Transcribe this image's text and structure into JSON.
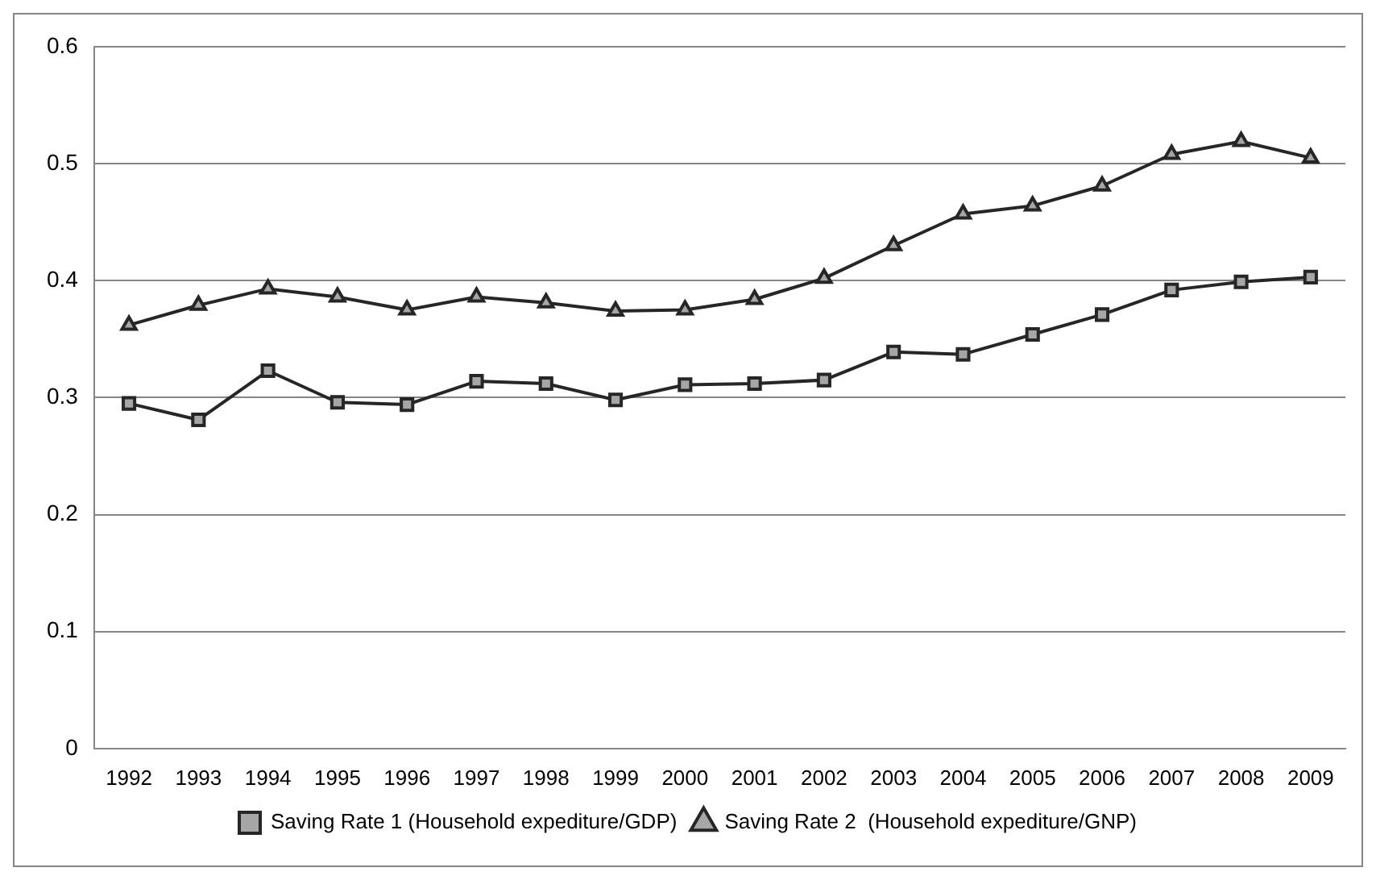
{
  "chart_data": {
    "type": "line",
    "categories": [
      "1992",
      "1993",
      "1994",
      "1995",
      "1996",
      "1997",
      "1998",
      "1999",
      "2000",
      "2001",
      "2002",
      "2003",
      "2004",
      "2005",
      "2006",
      "2007",
      "2008",
      "2009"
    ],
    "series": [
      {
        "name": "Saving Rate 1 (Household expediture/GDP)",
        "color": "#262626",
        "marker": "square",
        "values": [
          0.295,
          0.281,
          0.323,
          0.296,
          0.294,
          0.314,
          0.312,
          0.298,
          0.311,
          0.312,
          0.315,
          0.339,
          0.337,
          0.354,
          0.371,
          0.392,
          0.399,
          0.403
        ]
      },
      {
        "name": "Saving Rate 2  (Household expediture/GNP)",
        "color": "#262626",
        "marker": "triangle",
        "values": [
          0.362,
          0.379,
          0.393,
          0.386,
          0.375,
          0.386,
          0.381,
          0.374,
          0.375,
          0.384,
          0.402,
          0.43,
          0.457,
          0.464,
          0.481,
          0.508,
          0.519,
          0.505
        ]
      }
    ],
    "ylim": [
      0,
      0.6
    ],
    "yticks": [
      0,
      0.1,
      0.2,
      0.3,
      0.4,
      0.5,
      0.6
    ],
    "grid": "y",
    "legend": "bottom",
    "line_style": "solid"
  }
}
